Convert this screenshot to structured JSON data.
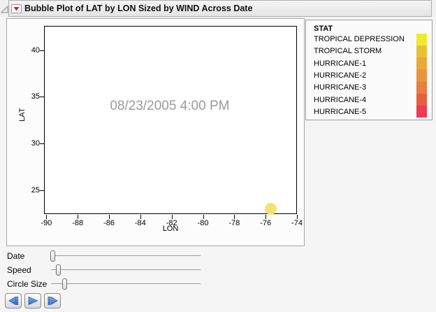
{
  "title_bar": {
    "title": "Bubble Plot of LAT by LON Sized by WIND Across Date",
    "disclosure_icon": "disclosure-triangle",
    "menu_icon": "red-triangle-menu"
  },
  "chart_data": {
    "type": "scatter",
    "subtype": "bubble",
    "title": "Bubble Plot of LAT by LON Sized by WIND Across Date",
    "xlabel": "LON",
    "ylabel": "LAT",
    "xlim": [
      -90.15,
      -74.0
    ],
    "ylim": [
      22.45,
      42.6
    ],
    "x_ticks": [
      -90,
      -88,
      -86,
      -84,
      -82,
      -80,
      -78,
      -76,
      -74
    ],
    "y_ticks": [
      25,
      30,
      35,
      40
    ],
    "grid": false,
    "annotation": "08/23/2005 4:00 PM",
    "points": [
      {
        "lon": -75.7,
        "lat": 23.1,
        "radius_px": 8.5,
        "color": "#f1e46e",
        "category": "TROPICAL DEPRESSION"
      }
    ]
  },
  "legend": {
    "title": "STAT",
    "position": "right",
    "entries": [
      {
        "label": "TROPICAL DEPRESSION",
        "color": "#f1e832"
      },
      {
        "label": "TROPICAL STORM",
        "color": "#e8c235"
      },
      {
        "label": "HURRICANE-1",
        "color": "#e8aa3b"
      },
      {
        "label": "HURRICANE-2",
        "color": "#ea953d"
      },
      {
        "label": "HURRICANE-3",
        "color": "#e87d40"
      },
      {
        "label": "HURRICANE-4",
        "color": "#e4603e"
      },
      {
        "label": "HURRICANE-5",
        "color": "#ef3a55"
      }
    ]
  },
  "sliders": [
    {
      "label": "Date",
      "value": 0.01
    },
    {
      "label": "Speed",
      "value": 0.05
    },
    {
      "label": "Circle Size",
      "value": 0.09
    }
  ],
  "playback": {
    "buttons": [
      {
        "name": "step-backward",
        "icon": "step-backward-icon"
      },
      {
        "name": "play",
        "icon": "play-icon"
      },
      {
        "name": "step-forward",
        "icon": "step-forward-icon"
      }
    ],
    "accent_color": "#3a71d4"
  }
}
